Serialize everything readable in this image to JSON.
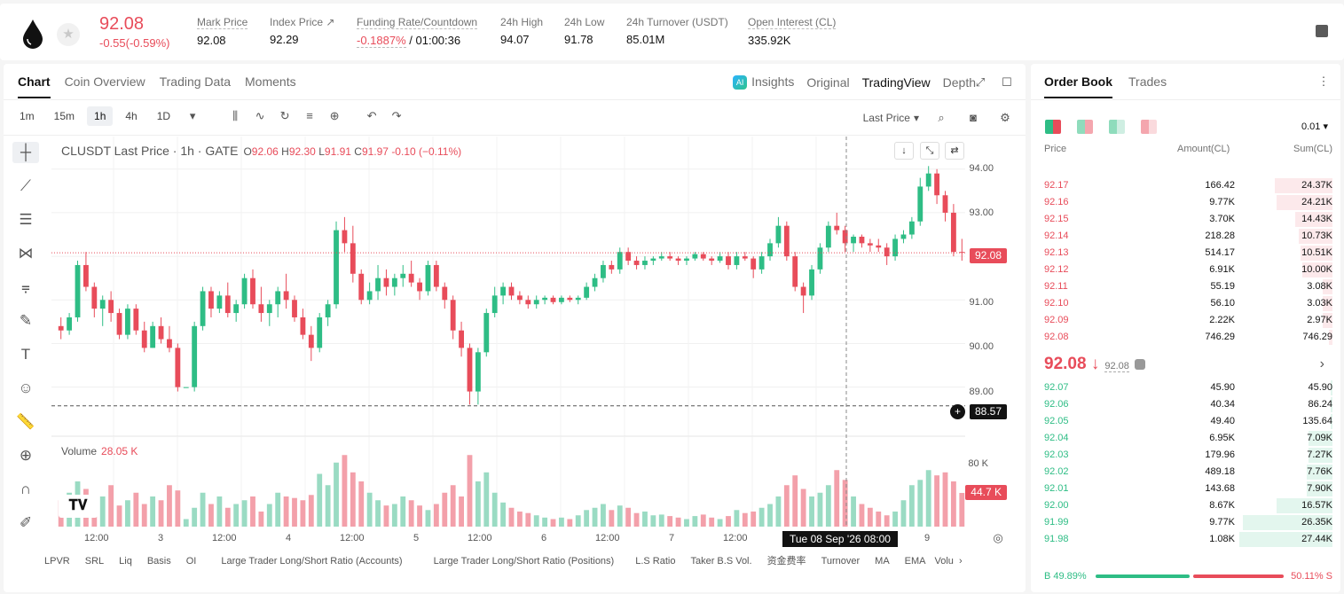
{
  "ticker": {
    "price": "92.08",
    "change": "-0.55(-0.59%)"
  },
  "stats": [
    {
      "label": "Mark Price",
      "value": "92.08"
    },
    {
      "label": "Index Price ↗",
      "value": "92.29"
    },
    {
      "label": "Funding Rate/Countdown",
      "value_neg": "-0.1887%",
      "value": " / 01:00:36"
    },
    {
      "label": "24h High",
      "value": "94.07"
    },
    {
      "label": "24h Low",
      "value": "91.78"
    },
    {
      "label": "24h Turnover (USDT)",
      "value": "85.01M"
    },
    {
      "label": "Open Interest (CL)",
      "value": "335.92K"
    }
  ],
  "tabs": [
    "Chart",
    "Coin Overview",
    "Trading Data",
    "Moments"
  ],
  "view_tabs": {
    "insights": "Insights",
    "ai_badge": "AI",
    "original": "Original",
    "tradingview": "TradingView",
    "depth": "Depth"
  },
  "timeframes": [
    "1m",
    "15m",
    "1h",
    "4h",
    "1D"
  ],
  "last_price_select": "Last Price",
  "legend": {
    "symbol": "CLUSDT Last Price · 1h · GATE",
    "o": "92.06",
    "h": "92.30",
    "l": "91.91",
    "c": "91.97",
    "chg": "-0.10 (−0.11%)"
  },
  "volume": {
    "label": "Volume",
    "value": "28.05 K"
  },
  "price_tags": {
    "last": "92.08",
    "cross": "88.57",
    "vol_last": "44.7 K"
  },
  "y_ticks": [
    "94.00",
    "93.00",
    "92.00",
    "91.00",
    "90.00",
    "89.00"
  ],
  "vol_tick": "80 K",
  "x_ticks": [
    "12:00",
    "3",
    "12:00",
    "4",
    "12:00",
    "5",
    "12:00",
    "6",
    "12:00",
    "7",
    "12:00",
    "9"
  ],
  "crosshair_time": "Tue 08 Sep '26   08:00",
  "indicators": [
    "LPVR",
    "SRL",
    "Liq",
    "Basis",
    "OI",
    "Large Trader Long/Short Ratio (Accounts)",
    "Large Trader Long/Short Ratio (Positions)",
    "L.S Ratio",
    "Taker B.S Vol.",
    "资金费率",
    "Turnover",
    "MA",
    "EMA",
    "Volu"
  ],
  "orderbook": {
    "tabs": [
      "Order Book",
      "Trades"
    ],
    "precision": "0.01",
    "headers": {
      "price": "Price",
      "amount": "Amount(CL)",
      "sum": "Sum(CL)"
    },
    "asks": [
      {
        "p": "92.17",
        "a": "166.42",
        "s": "24.37K",
        "w": 0.31
      },
      {
        "p": "92.16",
        "a": "9.77K",
        "s": "24.21K",
        "w": 0.3
      },
      {
        "p": "92.15",
        "a": "3.70K",
        "s": "14.43K",
        "w": 0.2
      },
      {
        "p": "92.14",
        "a": "218.28",
        "s": "10.73K",
        "w": 0.18
      },
      {
        "p": "92.13",
        "a": "514.17",
        "s": "10.51K",
        "w": 0.17
      },
      {
        "p": "92.12",
        "a": "6.91K",
        "s": "10.00K",
        "w": 0.16
      },
      {
        "p": "92.11",
        "a": "55.19",
        "s": "3.08K",
        "w": 0.05
      },
      {
        "p": "92.10",
        "a": "56.10",
        "s": "3.03K",
        "w": 0.05
      },
      {
        "p": "92.09",
        "a": "2.22K",
        "s": "2.97K",
        "w": 0.05
      },
      {
        "p": "92.08",
        "a": "746.29",
        "s": "746.29",
        "w": 0.02
      }
    ],
    "mid": {
      "price": "92.08 ↓",
      "mark": "92.08"
    },
    "bids": [
      {
        "p": "92.07",
        "a": "45.90",
        "s": "45.90",
        "w": 0.01
      },
      {
        "p": "92.06",
        "a": "40.34",
        "s": "86.24",
        "w": 0.01
      },
      {
        "p": "92.05",
        "a": "49.40",
        "s": "135.64",
        "w": 0.01
      },
      {
        "p": "92.04",
        "a": "6.95K",
        "s": "7.09K",
        "w": 0.13
      },
      {
        "p": "92.03",
        "a": "179.96",
        "s": "7.27K",
        "w": 0.13
      },
      {
        "p": "92.02",
        "a": "489.18",
        "s": "7.76K",
        "w": 0.14
      },
      {
        "p": "92.01",
        "a": "143.68",
        "s": "7.90K",
        "w": 0.14
      },
      {
        "p": "92.00",
        "a": "8.67K",
        "s": "16.57K",
        "w": 0.3
      },
      {
        "p": "91.99",
        "a": "9.77K",
        "s": "26.35K",
        "w": 0.48
      },
      {
        "p": "91.98",
        "a": "1.08K",
        "s": "27.44K",
        "w": 0.5
      }
    ],
    "ratio": {
      "buy": "B 49.89%",
      "sell": "50.11% S",
      "buy_frac": 0.4989
    }
  },
  "colors": {
    "up": "#2ebd85",
    "down": "#e84c5a"
  },
  "chart_data": {
    "type": "candlestick",
    "symbol": "CLUSDT",
    "interval": "1h",
    "ylim": [
      88.2,
      94.3
    ],
    "candles": [
      [
        90.4,
        90.6,
        90.1,
        90.3
      ],
      [
        90.3,
        90.7,
        90.2,
        90.6
      ],
      [
        90.6,
        91.9,
        90.5,
        91.8
      ],
      [
        91.8,
        92.1,
        91.2,
        91.3
      ],
      [
        91.3,
        91.4,
        90.6,
        90.8
      ],
      [
        90.8,
        91.1,
        90.4,
        91.0
      ],
      [
        91.0,
        91.2,
        90.5,
        90.7
      ],
      [
        90.7,
        90.8,
        90.1,
        90.2
      ],
      [
        90.2,
        90.9,
        90.1,
        90.8
      ],
      [
        90.8,
        90.9,
        90.2,
        90.3
      ],
      [
        90.3,
        90.5,
        89.8,
        89.9
      ],
      [
        89.9,
        90.5,
        89.9,
        90.4
      ],
      [
        90.4,
        90.6,
        90.0,
        90.1
      ],
      [
        90.1,
        90.4,
        89.8,
        89.9
      ],
      [
        89.9,
        90.0,
        88.9,
        89.0
      ],
      [
        89.0,
        89.0,
        89.0,
        89.0
      ],
      [
        89.0,
        90.5,
        88.9,
        90.4
      ],
      [
        90.4,
        91.3,
        90.3,
        91.2
      ],
      [
        91.2,
        91.3,
        90.6,
        90.8
      ],
      [
        90.8,
        91.2,
        90.7,
        91.1
      ],
      [
        91.1,
        91.4,
        90.6,
        90.7
      ],
      [
        90.7,
        91.0,
        90.5,
        90.9
      ],
      [
        90.9,
        91.6,
        90.8,
        91.5
      ],
      [
        91.5,
        91.7,
        90.8,
        90.9
      ],
      [
        90.9,
        91.3,
        90.5,
        90.7
      ],
      [
        90.7,
        91.0,
        90.4,
        90.9
      ],
      [
        90.9,
        91.3,
        90.6,
        91.2
      ],
      [
        91.2,
        91.6,
        90.8,
        91.0
      ],
      [
        91.0,
        91.1,
        90.5,
        90.6
      ],
      [
        90.6,
        90.8,
        90.1,
        90.2
      ],
      [
        90.2,
        90.4,
        89.6,
        89.9
      ],
      [
        89.9,
        90.7,
        89.8,
        90.6
      ],
      [
        90.6,
        91.0,
        90.4,
        90.9
      ],
      [
        90.9,
        92.8,
        90.8,
        92.6
      ],
      [
        92.6,
        92.9,
        92.1,
        92.3
      ],
      [
        92.3,
        92.7,
        91.4,
        91.6
      ],
      [
        91.6,
        91.7,
        90.9,
        91.0
      ],
      [
        91.0,
        91.4,
        90.9,
        91.2
      ],
      [
        91.2,
        91.8,
        91.0,
        91.5
      ],
      [
        91.5,
        91.7,
        91.1,
        91.3
      ],
      [
        91.3,
        91.6,
        91.1,
        91.5
      ],
      [
        91.5,
        91.8,
        91.3,
        91.6
      ],
      [
        91.6,
        91.9,
        91.3,
        91.4
      ],
      [
        91.4,
        91.5,
        91.0,
        91.2
      ],
      [
        91.2,
        91.9,
        91.1,
        91.8
      ],
      [
        91.8,
        91.9,
        91.2,
        91.3
      ],
      [
        91.3,
        91.4,
        90.8,
        91.0
      ],
      [
        91.0,
        91.1,
        90.1,
        90.3
      ],
      [
        90.3,
        90.5,
        89.7,
        89.9
      ],
      [
        89.9,
        90.0,
        88.6,
        88.9
      ],
      [
        88.9,
        89.9,
        88.6,
        89.8
      ],
      [
        89.8,
        90.8,
        89.7,
        90.7
      ],
      [
        90.7,
        91.3,
        90.6,
        91.1
      ],
      [
        91.1,
        91.4,
        90.9,
        91.3
      ],
      [
        91.3,
        91.4,
        91.0,
        91.1
      ],
      [
        91.1,
        91.2,
        90.9,
        91.0
      ],
      [
        91.0,
        91.1,
        90.8,
        90.9
      ],
      [
        90.9,
        91.1,
        90.8,
        91.0
      ],
      [
        91.0,
        91.1,
        90.9,
        91.05
      ],
      [
        91.05,
        91.1,
        90.9,
        90.95
      ],
      [
        90.95,
        91.1,
        90.9,
        91.05
      ],
      [
        91.05,
        91.1,
        90.95,
        91.0
      ],
      [
        91.0,
        91.1,
        90.9,
        91.05
      ],
      [
        91.05,
        91.4,
        91.0,
        91.3
      ],
      [
        91.3,
        91.6,
        91.2,
        91.5
      ],
      [
        91.5,
        91.9,
        91.4,
        91.8
      ],
      [
        91.8,
        91.9,
        91.6,
        91.7
      ],
      [
        91.7,
        92.2,
        91.6,
        92.1
      ],
      [
        92.1,
        92.2,
        91.8,
        91.9
      ],
      [
        91.9,
        92.0,
        91.7,
        91.8
      ],
      [
        91.8,
        92.0,
        91.7,
        91.9
      ],
      [
        91.9,
        92.0,
        91.8,
        91.95
      ],
      [
        91.95,
        92.1,
        91.9,
        92.0
      ],
      [
        92.0,
        92.1,
        91.9,
        91.95
      ],
      [
        91.95,
        92.0,
        91.8,
        91.9
      ],
      [
        91.9,
        92.0,
        91.8,
        91.95
      ],
      [
        91.95,
        92.1,
        91.9,
        92.05
      ],
      [
        92.05,
        92.1,
        91.9,
        91.95
      ],
      [
        91.95,
        92.0,
        91.8,
        91.9
      ],
      [
        91.9,
        92.1,
        91.85,
        92.0
      ],
      [
        92.0,
        92.1,
        91.7,
        91.8
      ],
      [
        91.8,
        92.1,
        91.7,
        92.0
      ],
      [
        92.0,
        92.1,
        91.9,
        91.95
      ],
      [
        91.95,
        92.0,
        91.5,
        91.7
      ],
      [
        91.7,
        92.1,
        91.6,
        92.0
      ],
      [
        92.0,
        92.4,
        91.9,
        92.3
      ],
      [
        92.3,
        92.9,
        92.2,
        92.7
      ],
      [
        92.7,
        92.8,
        91.9,
        92.0
      ],
      [
        92.0,
        92.1,
        91.2,
        91.3
      ],
      [
        91.3,
        91.4,
        90.7,
        91.1
      ],
      [
        91.1,
        91.8,
        91.0,
        91.7
      ],
      [
        91.7,
        92.3,
        91.6,
        92.2
      ],
      [
        92.2,
        92.8,
        92.1,
        92.7
      ],
      [
        92.7,
        93.0,
        92.5,
        92.6
      ],
      [
        92.6,
        92.7,
        92.1,
        92.3
      ],
      [
        92.3,
        92.5,
        92.1,
        92.45
      ],
      [
        92.45,
        92.5,
        92.2,
        92.3
      ],
      [
        92.3,
        92.4,
        92.1,
        92.25
      ],
      [
        92.25,
        92.4,
        92.1,
        92.2
      ],
      [
        92.2,
        92.3,
        91.8,
        92.0
      ],
      [
        92.0,
        92.5,
        91.9,
        92.4
      ],
      [
        92.4,
        92.6,
        92.3,
        92.5
      ],
      [
        92.5,
        92.9,
        92.4,
        92.8
      ],
      [
        92.8,
        93.8,
        92.7,
        93.6
      ],
      [
        93.6,
        94.07,
        93.5,
        93.9
      ],
      [
        93.9,
        94.0,
        93.2,
        93.4
      ],
      [
        93.4,
        93.5,
        92.8,
        93.0
      ],
      [
        93.0,
        93.2,
        92.0,
        92.1
      ],
      [
        92.1,
        92.4,
        91.9,
        92.08
      ]
    ],
    "volume": [
      35,
      45,
      60,
      50,
      30,
      40,
      55,
      28,
      35,
      45,
      30,
      40,
      35,
      55,
      48,
      10,
      25,
      45,
      30,
      40,
      25,
      30,
      35,
      40,
      20,
      30,
      45,
      40,
      38,
      35,
      42,
      70,
      55,
      85,
      95,
      72,
      60,
      45,
      35,
      28,
      30,
      40,
      35,
      28,
      22,
      30,
      45,
      55,
      40,
      95,
      60,
      72,
      45,
      32,
      25,
      20,
      18,
      15,
      12,
      10,
      12,
      10,
      15,
      22,
      25,
      30,
      22,
      28,
      25,
      18,
      20,
      15,
      16,
      14,
      12,
      10,
      14,
      16,
      12,
      10,
      14,
      22,
      18,
      20,
      25,
      30,
      40,
      55,
      68,
      50,
      40,
      45,
      55,
      75,
      62,
      40,
      30,
      25,
      20,
      15,
      20,
      35,
      55,
      62,
      75,
      68,
      72,
      60,
      44.7
    ]
  }
}
